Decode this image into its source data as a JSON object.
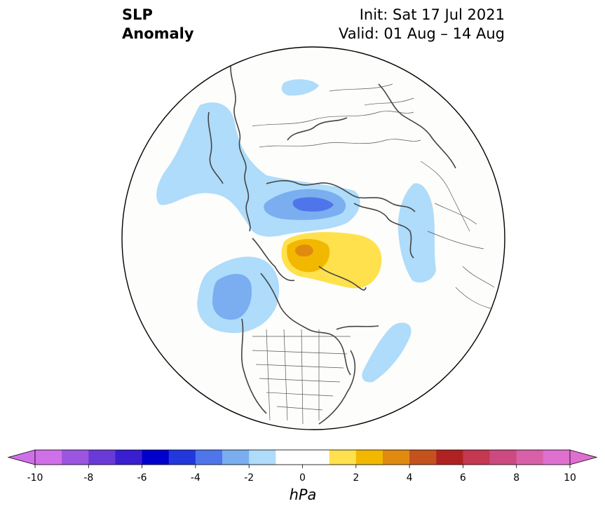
{
  "title": {
    "left_line1": "SLP",
    "left_line2": "Anomaly",
    "right_line1": "Init: Sat 17 Jul 2021",
    "right_line2": "Valid: 01 Aug – 14 Aug"
  },
  "map": {
    "projection": "north-polar-stereographic",
    "field": "sea level pressure anomaly",
    "features": [
      {
        "kind": "negative-anomaly",
        "level": -1.5,
        "region": "northern Siberia / Taymyr"
      },
      {
        "kind": "negative-anomaly",
        "level": -1.5,
        "region": "East Siberian coast / Yakutia"
      },
      {
        "kind": "negative-anomaly",
        "level": -4.5,
        "region": "Barents-Kara Seas"
      },
      {
        "kind": "negative-anomaly",
        "level": -2.5,
        "region": "Gulf of Alaska"
      },
      {
        "kind": "negative-anomaly",
        "level": -1.5,
        "region": "Scandinavia / Western Europe"
      },
      {
        "kind": "negative-anomaly",
        "level": -1.5,
        "region": "western North Atlantic"
      },
      {
        "kind": "positive-anomaly",
        "level": 2.5,
        "region": "Canadian Arctic / Greenland"
      },
      {
        "kind": "positive-anomaly",
        "level": 3.5,
        "region": "Canadian Arctic Archipelago"
      }
    ]
  },
  "colorbar": {
    "unit": "hPa",
    "tick_labels": [
      "-10",
      "-8",
      "-6",
      "-4",
      "-2",
      "0",
      "2",
      "4",
      "6",
      "8",
      "10"
    ],
    "ticks": [
      -10,
      -8,
      -6,
      -4,
      -2,
      0,
      2,
      4,
      6,
      8,
      10
    ],
    "bounds": [
      -10,
      10
    ],
    "extend": "both",
    "colors": [
      "#d070e8",
      "#9b55e0",
      "#6a3ad8",
      "#3a1ed0",
      "#0000cc",
      "#2238dd",
      "#4f75ea",
      "#7aaef0",
      "#aedcfa",
      "#ffffff",
      "#ffffff",
      "#ffe14d",
      "#f2b800",
      "#e08a10",
      "#c4521c",
      "#b02222",
      "#c43850",
      "#cc4a80",
      "#d860a8",
      "#e070d0"
    ],
    "extend_low_color": "#d070e8",
    "extend_high_color": "#e070d0"
  }
}
